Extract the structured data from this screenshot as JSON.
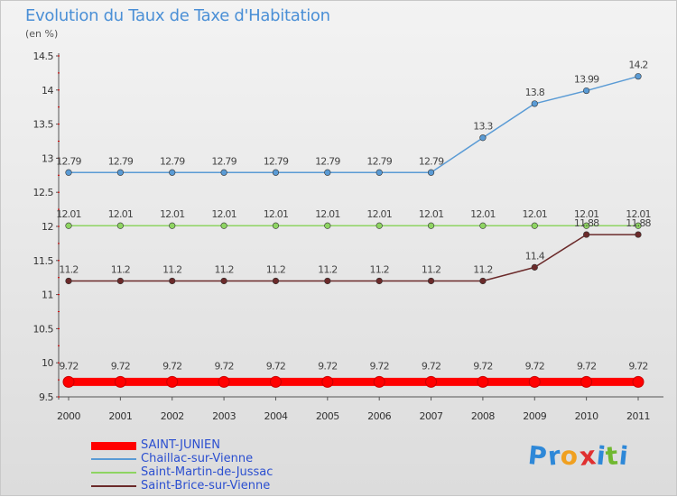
{
  "chart_data": {
    "type": "line",
    "title": "Evolution du Taux de Taxe d'Habitation",
    "subtitle": "(en %)",
    "x": [
      "2000",
      "2001",
      "2002",
      "2003",
      "2004",
      "2005",
      "2006",
      "2007",
      "2008",
      "2009",
      "2010",
      "2011"
    ],
    "ylim": [
      9.5,
      14.5
    ],
    "yticks": [
      "9.5",
      "10",
      "10.5",
      "11",
      "11.5",
      "12",
      "12.5",
      "13",
      "13.5",
      "14",
      "14.5"
    ],
    "grid": false,
    "legend_position": "bottom-left",
    "series": [
      {
        "name": "SAINT-JUNIEN",
        "color": "#ff0000",
        "values": [
          9.72,
          9.72,
          9.72,
          9.72,
          9.72,
          9.72,
          9.72,
          9.72,
          9.72,
          9.72,
          9.72,
          9.72
        ],
        "labels": [
          "9.72",
          "9.72",
          "9.72",
          "9.72",
          "9.72",
          "9.72",
          "9.72",
          "9.72",
          "9.72",
          "9.72",
          "9.72",
          "9.72"
        ]
      },
      {
        "name": "Chaillac-sur-Vienne",
        "color": "#5a9bd5",
        "values": [
          12.79,
          12.79,
          12.79,
          12.79,
          12.79,
          12.79,
          12.79,
          12.79,
          13.3,
          13.8,
          13.99,
          14.2
        ],
        "labels": [
          "12.79",
          "12.79",
          "12.79",
          "12.79",
          "12.79",
          "12.79",
          "12.79",
          "12.79",
          "13.3",
          "13.8",
          "13.99",
          "14.2"
        ]
      },
      {
        "name": "Saint-Martin-de-Jussac",
        "color": "#8ed462",
        "values": [
          12.01,
          12.01,
          12.01,
          12.01,
          12.01,
          12.01,
          12.01,
          12.01,
          12.01,
          12.01,
          12.01,
          12.01
        ],
        "labels": [
          "12.01",
          "12.01",
          "12.01",
          "12.01",
          "12.01",
          "12.01",
          "12.01",
          "12.01",
          "12.01",
          "12.01",
          "12.01",
          "12.01"
        ]
      },
      {
        "name": "Saint-Brice-sur-Vienne",
        "color": "#6b2a2a",
        "values": [
          11.2,
          11.2,
          11.2,
          11.2,
          11.2,
          11.2,
          11.2,
          11.2,
          11.2,
          11.4,
          11.88,
          11.88
        ],
        "labels": [
          "11.2",
          "11.2",
          "11.2",
          "11.2",
          "11.2",
          "11.2",
          "11.2",
          "11.2",
          "11.2",
          "11.4",
          "11.88",
          "11.88"
        ]
      }
    ]
  },
  "logo": {
    "letters": [
      "P",
      "r",
      "o",
      "x",
      "i",
      "t",
      "i"
    ],
    "colors": [
      "#2e88d8",
      "#2e88d8",
      "#f0a020",
      "#e03030",
      "#2e88d8",
      "#70b830",
      "#2e88d8"
    ]
  }
}
